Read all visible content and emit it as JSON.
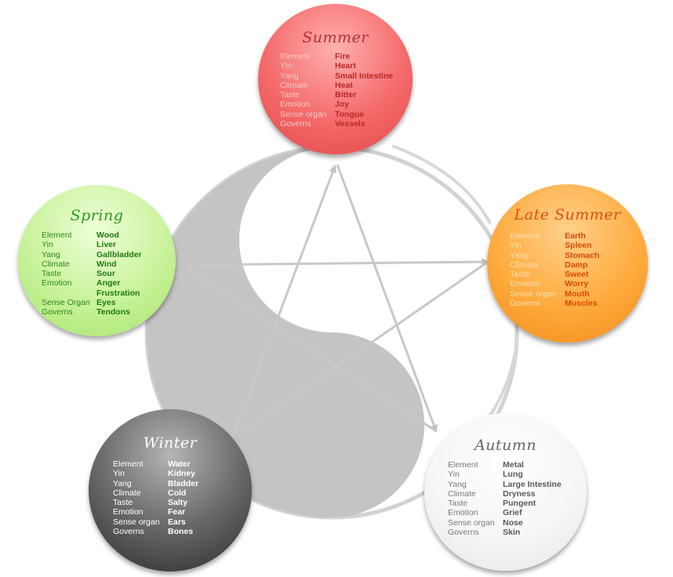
{
  "colors": {
    "summer": "#f56a6a",
    "late_summer": "#ffab3e",
    "spring": "#c8f29a",
    "winter": "#4a4a4a",
    "autumn": "#f2f2f2",
    "yin_yang": "#c4c4c4",
    "arrows": "#c8c8c8"
  },
  "elements": {
    "summer": {
      "title": "Summer",
      "rows": [
        {
          "key": "Element",
          "value": "Fire"
        },
        {
          "key": "Yin",
          "value": "Heart"
        },
        {
          "key": "Yang",
          "value": "Small Intestine"
        },
        {
          "key": "Climate",
          "value": "Heat"
        },
        {
          "key": "Taste",
          "value": "Bitter"
        },
        {
          "key": "Emotion",
          "value": "Joy"
        },
        {
          "key": "Sense organ",
          "value": "Tongue"
        },
        {
          "key": "Governs",
          "value": "Vessels"
        }
      ]
    },
    "late_summer": {
      "title": "Late Summer",
      "rows": [
        {
          "key": "Element",
          "value": "Earth"
        },
        {
          "key": "Yin",
          "value": "Spleen"
        },
        {
          "key": "Yang",
          "value": "Stomach"
        },
        {
          "key": "Climate",
          "value": "Damp"
        },
        {
          "key": "Taste",
          "value": "Sweet"
        },
        {
          "key": "Emotion",
          "value": "Worry"
        },
        {
          "key": "Sense organ",
          "value": "Mouth"
        },
        {
          "key": "Governs",
          "value": "Muscles"
        }
      ]
    },
    "spring": {
      "title": "Spring",
      "rows": [
        {
          "key": "Element",
          "value": "Wood"
        },
        {
          "key": "Yin",
          "value": "Liver"
        },
        {
          "key": "Yang",
          "value": "Gallbladder"
        },
        {
          "key": "Climate",
          "value": "Wind"
        },
        {
          "key": "Taste",
          "value": "Sour"
        },
        {
          "key": "Emotion",
          "value": "Anger"
        },
        {
          "key": "",
          "value": "Frustration"
        },
        {
          "key": "Sense Organ",
          "value": "Eyes"
        },
        {
          "key": "Governs",
          "value": "Tendons"
        }
      ]
    },
    "winter": {
      "title": "Winter",
      "rows": [
        {
          "key": "Element",
          "value": "Water"
        },
        {
          "key": "Yin",
          "value": "Kidney"
        },
        {
          "key": "Yang",
          "value": "Bladder"
        },
        {
          "key": "Climate",
          "value": "Cold"
        },
        {
          "key": "Taste",
          "value": "Salty"
        },
        {
          "key": "Emotion",
          "value": "Fear"
        },
        {
          "key": "Sense organ",
          "value": "Ears"
        },
        {
          "key": "Governs",
          "value": "Bones"
        }
      ]
    },
    "autumn": {
      "title": "Autumn",
      "rows": [
        {
          "key": "Element",
          "value": "Metal"
        },
        {
          "key": "Yin",
          "value": "Lung"
        },
        {
          "key": "Yang",
          "value": "Large Intestine"
        },
        {
          "key": "Climate",
          "value": "Dryness"
        },
        {
          "key": "Taste",
          "value": "Pungent"
        },
        {
          "key": "Emotion",
          "value": "Grief"
        },
        {
          "key": "Sense organ",
          "value": "Nose"
        },
        {
          "key": "Governs",
          "value": "Skin"
        }
      ]
    }
  }
}
